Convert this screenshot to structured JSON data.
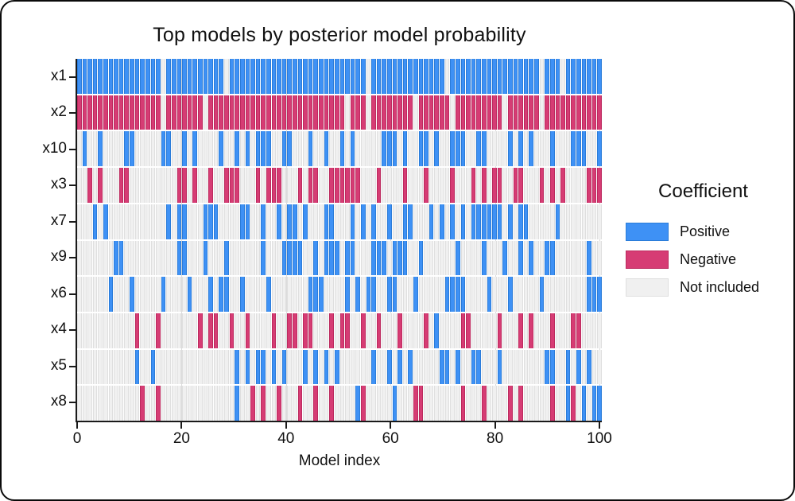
{
  "figure": {
    "border_color": "#0a0a0a",
    "background": "#ffffff"
  },
  "chart_data": {
    "type": "heatmap",
    "title": "Top models by posterior model probability",
    "xlabel": "Model index",
    "x_ticks": [
      0,
      20,
      40,
      60,
      80,
      100
    ],
    "x_range": [
      0,
      100
    ],
    "n_models": 100,
    "grid": "faint vertical gridlines at x ticks",
    "rows": [
      "x1",
      "x2",
      "x10",
      "x3",
      "x7",
      "x9",
      "x6",
      "x4",
      "x5",
      "x8"
    ],
    "legend": {
      "title": "Coefficient",
      "position": "right",
      "entries": [
        {
          "label": "Positive",
          "key": "pos",
          "color": "#3e91f5",
          "border": "#2b7cd9"
        },
        {
          "label": "Negative",
          "key": "neg",
          "color": "#d63c74",
          "border": "#bc2a5e"
        },
        {
          "label": "Not included",
          "key": "off",
          "color": "#f0f0f0",
          "border": "#dfdfdf"
        }
      ]
    },
    "cells_note": "per row: model indices (1-100) with positive/negative coefficient; entries are single indices or [start,end] ranges; all other models = not included",
    "cells": {
      "x1": {
        "pos": [
          [
            1,
            16
          ],
          [
            18,
            28
          ],
          [
            30,
            55
          ],
          [
            57,
            70
          ],
          [
            72,
            88
          ],
          [
            90,
            92
          ],
          [
            94,
            100
          ]
        ],
        "neg": []
      },
      "x2": {
        "pos": [],
        "neg": [
          [
            1,
            16
          ],
          [
            18,
            24
          ],
          [
            26,
            51
          ],
          [
            53,
            55
          ],
          [
            57,
            64
          ],
          [
            66,
            71
          ],
          [
            73,
            81
          ],
          [
            83,
            88
          ],
          [
            90,
            100
          ]
        ]
      },
      "x10": {
        "pos": [
          2,
          5,
          [
            10,
            11
          ],
          [
            17,
            18
          ],
          21,
          23,
          28,
          31,
          33,
          [
            35,
            37
          ],
          [
            40,
            41
          ],
          45,
          48,
          51,
          53,
          [
            59,
            61
          ],
          63,
          [
            66,
            67
          ],
          69,
          [
            72,
            74
          ],
          [
            77,
            78
          ],
          83,
          85,
          87,
          91,
          [
            95,
            97
          ],
          100
        ],
        "neg": []
      },
      "x3": {
        "pos": [],
        "neg": [
          3,
          5,
          [
            9,
            10
          ],
          [
            20,
            21
          ],
          23,
          26,
          [
            29,
            31
          ],
          35,
          [
            37,
            39
          ],
          43,
          [
            45,
            46
          ],
          [
            49,
            54
          ],
          58,
          63,
          67,
          72,
          76,
          78,
          [
            80,
            81
          ],
          [
            84,
            85
          ],
          89,
          91,
          93,
          [
            98,
            100
          ]
        ]
      },
      "x7": {
        "pos": [
          4,
          6,
          18,
          [
            20,
            21
          ],
          [
            25,
            27
          ],
          [
            32,
            33
          ],
          36,
          39,
          [
            41,
            42
          ],
          44,
          [
            48,
            49
          ],
          53,
          55,
          57,
          60,
          [
            63,
            64
          ],
          68,
          70,
          72,
          74,
          [
            76,
            81
          ],
          83,
          [
            85,
            86
          ],
          92
        ],
        "neg": []
      },
      "x9": {
        "pos": [
          [
            8,
            9
          ],
          [
            20,
            21
          ],
          25,
          29,
          36,
          [
            40,
            43
          ],
          46,
          [
            48,
            50
          ],
          [
            52,
            53
          ],
          [
            57,
            59
          ],
          [
            61,
            63
          ],
          66,
          73,
          78,
          82,
          85,
          87,
          [
            90,
            91
          ],
          98
        ],
        "neg": []
      },
      "x6": {
        "pos": [
          7,
          11,
          17,
          22,
          26,
          [
            28,
            29
          ],
          32,
          37,
          [
            45,
            47
          ],
          52,
          54,
          [
            56,
            57
          ],
          [
            60,
            61
          ],
          65,
          [
            71,
            74
          ],
          79,
          83,
          89,
          [
            98,
            100
          ]
        ],
        "neg": []
      },
      "x4": {
        "pos": [
          69
        ],
        "neg": [
          12,
          16,
          24,
          [
            26,
            27
          ],
          30,
          33,
          38,
          [
            41,
            42
          ],
          [
            44,
            45
          ],
          49,
          [
            51,
            52
          ],
          55,
          58,
          62,
          67,
          [
            74,
            75
          ],
          81,
          85,
          87,
          91,
          [
            95,
            96
          ]
        ]
      },
      "x5": {
        "pos": [
          12,
          15,
          31,
          33,
          [
            35,
            36
          ],
          38,
          40,
          44,
          46,
          48,
          50,
          57,
          60,
          62,
          64,
          [
            70,
            71
          ],
          73,
          [
            76,
            77
          ],
          81,
          [
            90,
            91
          ],
          94,
          96,
          98
        ],
        "neg": []
      },
      "x8": {
        "pos": [
          31,
          54,
          61,
          94,
          97,
          [
            99,
            100
          ]
        ],
        "neg": [
          13,
          16,
          34,
          36,
          39,
          43,
          46,
          49,
          55,
          [
            65,
            66
          ],
          74,
          78,
          83,
          85,
          91,
          95
        ]
      }
    }
  }
}
